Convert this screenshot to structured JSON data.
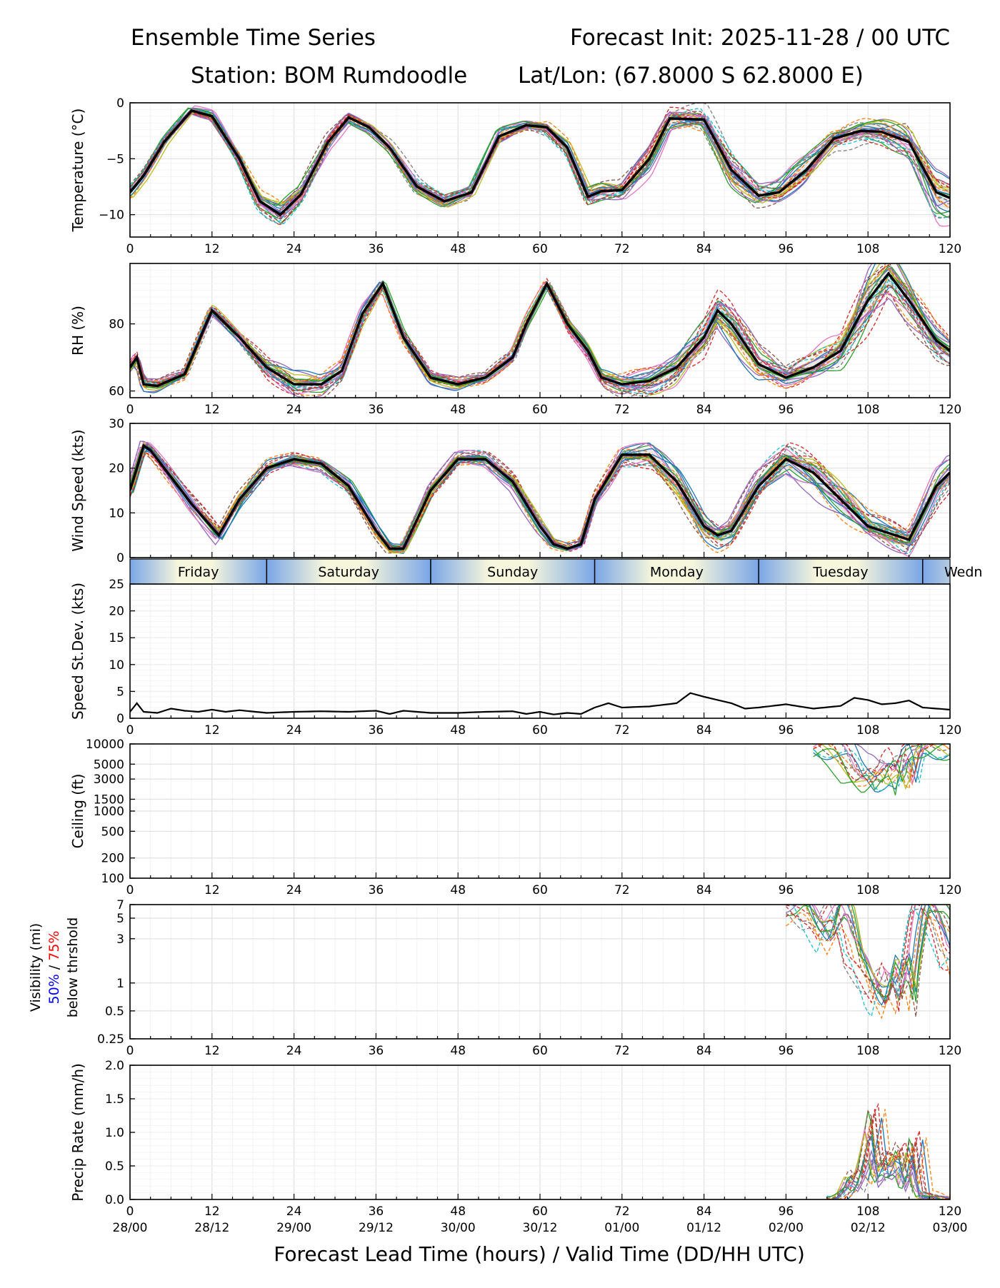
{
  "header": {
    "title": "Ensemble Time Series",
    "init": "Forecast Init: 2025-11-28 / 00 UTC",
    "station": "Station: BOM Rumdoodle",
    "latlon": "Lat/Lon: (67.8000 S 62.8000 E)"
  },
  "xaxis": {
    "label": "Forecast Lead Time (hours) / Valid Time (DD/HH UTC)",
    "hour_ticks": [
      "0",
      "12",
      "24",
      "36",
      "48",
      "60",
      "72",
      "84",
      "96",
      "108",
      "120"
    ],
    "valid_ticks": [
      "28/00",
      "28/12",
      "29/00",
      "29/12",
      "30/00",
      "30/12",
      "01/00",
      "01/12",
      "02/00",
      "02/12",
      "03/00"
    ]
  },
  "day_band": {
    "days": [
      {
        "label": "Friday",
        "start": 0,
        "end": 20
      },
      {
        "label": "Saturday",
        "start": 20,
        "end": 44
      },
      {
        "label": "Sunday",
        "start": 44,
        "end": 68
      },
      {
        "label": "Monday",
        "start": 68,
        "end": 92
      },
      {
        "label": "Tuesday",
        "start": 92,
        "end": 116
      },
      {
        "label": "Wedn",
        "start": 116,
        "end": 140
      }
    ]
  },
  "visibility_label": {
    "line1": "Visibility (mi)",
    "p50": "50%",
    "sep": " / ",
    "p75": "75%",
    "line3": "below thrshold"
  },
  "colors": {
    "mean": "#000000",
    "grid": "#e0e0e0",
    "band_light": "#f6f6dc",
    "band_dark": "#7aa6e6",
    "p50": "#0000ff",
    "p75": "#ff0000",
    "members": [
      "#1f77b4",
      "#ff7f0e",
      "#2ca02c",
      "#d62728",
      "#9467bd",
      "#8c564b",
      "#e377c2",
      "#7f7f7f",
      "#bcbd22",
      "#17becf"
    ]
  },
  "chart_data": [
    {
      "type": "line",
      "name": "temperature",
      "ylabel": "Temperature (°C)",
      "ylim": [
        -12,
        0
      ],
      "yticks": [
        0,
        -5,
        -10
      ],
      "ytick_labels": [
        "0",
        "−5",
        "−10"
      ],
      "x": [
        0,
        2,
        5,
        9,
        12,
        16,
        19,
        22,
        25,
        29,
        32,
        35,
        38,
        42,
        46,
        50,
        54,
        58,
        61,
        64,
        67,
        69,
        72,
        76,
        79,
        84,
        88,
        92,
        95,
        99,
        103,
        107,
        110,
        114,
        118,
        120
      ],
      "mean": [
        -8.0,
        -6.5,
        -3.5,
        -0.7,
        -1.2,
        -5.0,
        -8.8,
        -10.0,
        -8.2,
        -3.5,
        -1.3,
        -2.2,
        -4.0,
        -7.5,
        -8.8,
        -8.0,
        -3.0,
        -2.0,
        -2.2,
        -4.0,
        -8.4,
        -7.9,
        -7.8,
        -5.0,
        -1.4,
        -1.5,
        -6.0,
        -8.3,
        -8.0,
        -6.0,
        -3.2,
        -2.5,
        -2.6,
        -3.5,
        -8.0,
        -8.5
      ],
      "spread": [
        0.5,
        0.4,
        0.5,
        0.3,
        0.4,
        0.6,
        0.8,
        1.0,
        0.7,
        0.6,
        0.4,
        0.5,
        0.6,
        0.6,
        0.5,
        0.6,
        0.6,
        0.5,
        0.6,
        0.6,
        0.7,
        0.8,
        0.8,
        1.0,
        1.2,
        1.0,
        1.3,
        1.0,
        1.0,
        1.2,
        1.0,
        0.9,
        1.0,
        1.5,
        2.0,
        1.8
      ]
    },
    {
      "type": "line",
      "name": "rh",
      "ylabel": "RH (%)",
      "ylim": [
        58,
        98
      ],
      "yticks": [
        60,
        80
      ],
      "ytick_labels": [
        "60",
        "80"
      ],
      "x": [
        0,
        1,
        2,
        4,
        8,
        12,
        16,
        20,
        24,
        28,
        31,
        34,
        37,
        40,
        44,
        48,
        52,
        56,
        58,
        61,
        64,
        67,
        69,
        72,
        76,
        80,
        84,
        86,
        88,
        92,
        96,
        100,
        104,
        108,
        111,
        114,
        118,
        120
      ],
      "mean": [
        67,
        70,
        62,
        61.5,
        65,
        84,
        76,
        67,
        62,
        62,
        66,
        83,
        92,
        76,
        64,
        62,
        64,
        70,
        80,
        92,
        80,
        72,
        64,
        62,
        63,
        67,
        76,
        84,
        80,
        68,
        64,
        67,
        72,
        87,
        95,
        87,
        75,
        72
      ],
      "spread": [
        1.5,
        1.5,
        1.5,
        1.5,
        1.5,
        1.5,
        2,
        3,
        3,
        3,
        3,
        3,
        2,
        2,
        1.5,
        1.5,
        1.5,
        2,
        2,
        1.5,
        2,
        2,
        2,
        3,
        4,
        5,
        6,
        5,
        5,
        4,
        3,
        4,
        6,
        8,
        6,
        6,
        5,
        4
      ]
    },
    {
      "type": "line",
      "name": "wind",
      "ylabel": "Wind Speed (kts)",
      "ylim": [
        0,
        30
      ],
      "yticks": [
        0,
        10,
        20,
        30
      ],
      "ytick_labels": [
        "0",
        "10",
        "20",
        "30"
      ],
      "x": [
        0,
        2,
        3,
        5,
        9,
        13,
        16,
        20,
        24,
        28,
        32,
        36,
        38,
        40,
        44,
        48,
        52,
        56,
        60,
        62,
        64,
        66,
        68,
        70,
        72,
        76,
        80,
        84,
        86,
        88,
        92,
        96,
        100,
        104,
        108,
        112,
        114,
        118,
        120
      ],
      "mean": [
        15,
        25,
        24,
        20,
        12,
        5,
        13,
        20,
        22,
        21,
        16,
        6,
        2,
        2,
        15,
        22,
        22,
        17,
        7,
        3,
        2,
        3,
        13,
        18,
        23,
        23,
        17,
        7,
        5,
        6,
        16,
        22,
        19,
        13,
        7,
        5,
        4,
        16,
        19
      ],
      "spread": [
        1.5,
        1.5,
        1.5,
        1.5,
        1.5,
        1.5,
        1.5,
        1.5,
        1.5,
        1.5,
        1.5,
        1.5,
        1,
        1,
        1.5,
        1.5,
        1.5,
        1.5,
        1.5,
        1,
        1,
        1,
        1.5,
        2,
        2,
        2.5,
        3,
        3,
        3,
        3,
        3,
        3,
        3.5,
        3.5,
        3,
        3,
        3,
        3.5,
        3
      ]
    },
    {
      "type": "line",
      "name": "speed_stdev",
      "ylabel": "Speed St.Dev. (kts)",
      "ylim": [
        0,
        25
      ],
      "yticks": [
        0,
        5,
        10,
        15,
        20,
        25
      ],
      "ytick_labels": [
        "0",
        "5",
        "10",
        "15",
        "20",
        "25"
      ],
      "x": [
        0,
        1,
        2,
        4,
        6,
        8,
        10,
        12,
        14,
        16,
        20,
        24,
        28,
        32,
        36,
        38,
        40,
        44,
        48,
        52,
        56,
        58,
        60,
        62,
        64,
        66,
        67,
        68,
        70,
        72,
        76,
        80,
        82,
        84,
        88,
        90,
        92,
        96,
        100,
        104,
        106,
        108,
        110,
        112,
        114,
        116,
        118,
        120
      ],
      "y": [
        1.2,
        2.8,
        1.2,
        1.0,
        1.8,
        1.4,
        1.2,
        1.6,
        1.2,
        1.5,
        1.0,
        1.2,
        1.3,
        1.2,
        1.4,
        0.8,
        1.4,
        1.0,
        1.0,
        1.2,
        1.3,
        0.8,
        1.2,
        0.7,
        1.0,
        0.8,
        1.4,
        2.0,
        2.8,
        2.0,
        2.2,
        2.8,
        4.7,
        4.0,
        2.8,
        1.8,
        2.0,
        2.6,
        1.8,
        2.3,
        3.8,
        3.4,
        2.6,
        2.8,
        3.3,
        2.0,
        1.8,
        1.6
      ]
    },
    {
      "type": "line",
      "name": "ceiling",
      "ylabel": "Ceiling (ft)",
      "scale": "log",
      "ylim": [
        100,
        10000
      ],
      "yticks": [
        100,
        200,
        500,
        1000,
        1500,
        3000,
        5000,
        10000
      ],
      "ytick_labels": [
        "100",
        "200",
        "500",
        "1000",
        "1500",
        "3000",
        "5000",
        "10000"
      ],
      "x": [
        102,
        104,
        106,
        108,
        109,
        110,
        111,
        112,
        113,
        114,
        115,
        116
      ],
      "y": [
        10000,
        8000,
        4000,
        3000,
        3500,
        4000,
        2800,
        5000,
        6000,
        2500,
        10000,
        10000
      ]
    },
    {
      "type": "line",
      "name": "visibility",
      "scale": "log",
      "ylim": [
        0.25,
        7
      ],
      "yticks": [
        0.25,
        0.5,
        1,
        3,
        5,
        7
      ],
      "ytick_labels": [
        "0.25",
        "0.5",
        "1",
        "3",
        "5",
        "7"
      ],
      "x": [
        98,
        100,
        102,
        104,
        106,
        108,
        109,
        110,
        111,
        112,
        113,
        114,
        115,
        116,
        118,
        120
      ],
      "y": [
        7,
        4,
        3,
        7,
        2,
        1,
        0.7,
        0.6,
        1.2,
        0.8,
        1.5,
        0.6,
        3,
        7,
        5,
        2
      ]
    },
    {
      "type": "line",
      "name": "precip",
      "ylabel": "Precip Rate (mm/h)",
      "ylim": [
        0,
        2.0
      ],
      "yticks": [
        0.0,
        0.5,
        1.0,
        1.5,
        2.0
      ],
      "ytick_labels": [
        "0.0",
        "0.5",
        "1.0",
        "1.5",
        "2.0"
      ],
      "x": [
        104,
        105,
        106,
        107,
        108,
        109,
        110,
        111,
        112,
        113,
        114,
        115,
        116,
        118,
        120
      ],
      "y": [
        0,
        0.1,
        0.3,
        0.2,
        0.6,
        1.05,
        0.3,
        0.5,
        0.4,
        0.6,
        0.2,
        0.75,
        0.1,
        0,
        0
      ]
    }
  ]
}
